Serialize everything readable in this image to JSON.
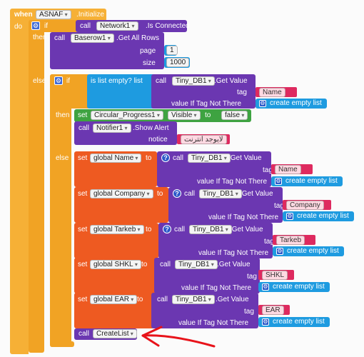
{
  "when_block": {
    "when": "when",
    "component": "ASNAF",
    "event": ".Initialize",
    "do": "do"
  },
  "if1": {
    "if": "if",
    "call": "call",
    "component": "Network1",
    "method": ".Is Connected",
    "then": "then",
    "else": "else"
  },
  "getallrows": {
    "call": "call",
    "component": "Baserow1",
    "method": ".Get All Rows",
    "page_label": "page",
    "page_value": "1",
    "size_label": "size",
    "size_value": "1000"
  },
  "if2": {
    "if": "if",
    "condition": "is list empty?  list",
    "then": "then",
    "else": "else"
  },
  "tinydb_name_check": {
    "call": "call",
    "component": "Tiny_DB1",
    "method": ".Get Value",
    "tag_label": "tag",
    "tag_value": "Name",
    "vitns_label": "value If Tag Not There",
    "empty_list": "create empty list"
  },
  "set_visible": {
    "set": "set",
    "component": "Circular_Progress1",
    "property": "Visible",
    "to": "to",
    "value": "false"
  },
  "show_alert": {
    "call": "call",
    "component": "Notifier1",
    "method": ".Show Alert",
    "notice_label": "notice",
    "notice_value": "لايوجد انترنت"
  },
  "sets": [
    {
      "set": "set",
      "var": "global Name",
      "to": "to",
      "call": "call",
      "component": "Tiny_DB1",
      "method": ".Get Value",
      "tag_label": "tag",
      "tag_value": "Name",
      "vitns_label": "value If Tag Not There",
      "empty_list": "create empty list"
    },
    {
      "set": "set",
      "var": "global Company",
      "to": "to",
      "call": "call",
      "component": "Tiny_DB1",
      "method": ".Get Value",
      "tag_label": "tag",
      "tag_value": "Company",
      "vitns_label": "value If Tag Not There",
      "empty_list": "create empty list"
    },
    {
      "set": "set",
      "var": "global Tarkeb",
      "to": "to",
      "call": "call",
      "component": "Tiny_DB1",
      "method": ".Get Value",
      "tag_label": "tag",
      "tag_value": "Tarkeb",
      "vitns_label": "value If Tag Not There",
      "empty_list": "create empty list"
    },
    {
      "set": "set",
      "var": "global SHKL",
      "to": "to",
      "call": "call",
      "component": "Tiny_DB1",
      "method": ".Get Value",
      "tag_label": "tag",
      "tag_value": "SHKL",
      "vitns_label": "value If Tag Not There",
      "empty_list": "create empty list"
    },
    {
      "set": "set",
      "var": "global EAR",
      "to": "to",
      "call": "call",
      "component": "Tiny_DB1",
      "method": ".Get Value",
      "tag_label": "tag",
      "tag_value": "EAR",
      "vitns_label": "value If Tag Not There",
      "empty_list": "create empty list"
    }
  ],
  "createlist": {
    "call": "call",
    "procedure": "CreateList"
  },
  "colors": {
    "event": "#F6B036",
    "control": "#F1A324",
    "component": "#6B37B1",
    "setter": "#EE5A21",
    "text": "#DE2A5F",
    "list": "#1E9BE0",
    "logic": "#3EA341",
    "annotation_arrow": "#E8131A"
  },
  "icons": [
    "gear-icon",
    "question-icon",
    "create-list-icon",
    "red-arrow-annotation"
  ]
}
